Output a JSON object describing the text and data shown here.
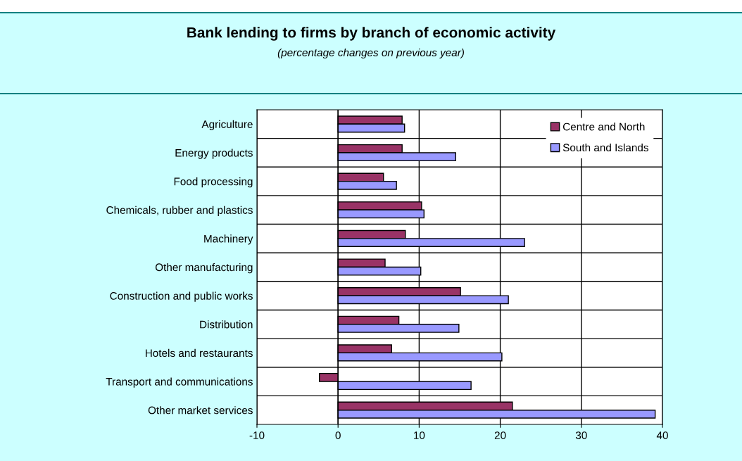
{
  "chart_data": {
    "type": "bar",
    "orientation": "horizontal",
    "title": "Bank lending to firms by branch of economic activity",
    "subtitle": "(percentage changes on previous year)",
    "categories": [
      "Agriculture",
      "Energy products",
      "Food processing",
      "Chemicals, rubber and plastics",
      "Machinery",
      "Other manufacturing",
      "Construction and public works",
      "Distribution",
      "Hotels and restaurants",
      "Transport and communications",
      "Other market services"
    ],
    "series": [
      {
        "name": "Centre and North",
        "color": "#993366",
        "values": [
          7.9,
          7.9,
          5.6,
          10.3,
          8.3,
          5.8,
          15.1,
          7.5,
          6.6,
          -2.3,
          21.5
        ]
      },
      {
        "name": "South and Islands",
        "color": "#9999ff",
        "values": [
          8.2,
          14.5,
          7.2,
          10.6,
          23.0,
          10.2,
          21.0,
          14.9,
          20.2,
          16.4,
          39.1
        ]
      }
    ],
    "xlim": [
      -10,
      40
    ],
    "xticks": [
      -10,
      0,
      10,
      20,
      30,
      40
    ],
    "grid": true,
    "legend": "top right"
  }
}
